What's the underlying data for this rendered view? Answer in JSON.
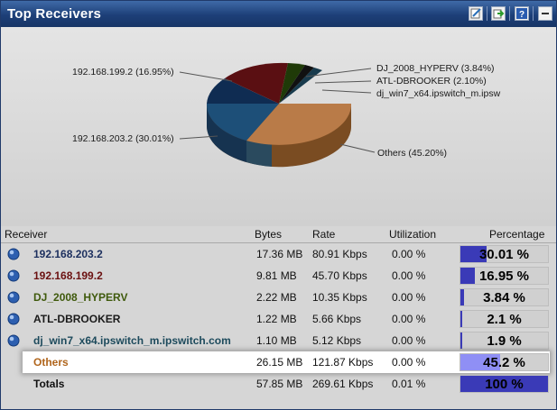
{
  "window": {
    "title": "Top Receivers"
  },
  "titlebar_buttons": [
    {
      "name": "edit-icon"
    },
    {
      "name": "export-icon"
    },
    {
      "name": "help-icon"
    },
    {
      "name": "minimize-icon"
    }
  ],
  "pie": {
    "labels": [
      "192.168.199.2 (16.95%)",
      "DJ_2008_HYPERV (3.84%)",
      "ATL-DBROOKER (2.10%)",
      "dj_win7_x64.ipswitch_m.ipsw",
      "192.168.203.2 (30.01%)",
      "Others (45.20%)"
    ]
  },
  "table": {
    "headers": {
      "receiver": "Receiver",
      "bytes": "Bytes",
      "rate": "Rate",
      "utilization": "Utilization",
      "percentage": "Percentage"
    },
    "rows": [
      {
        "receiver": "192.168.203.2",
        "bytes": "17.36 MB",
        "rate": "80.91 Kbps",
        "utilization": "0.00 %",
        "percentage": "30.01 %",
        "pct_value": 30.01,
        "color": "#1c2f5e"
      },
      {
        "receiver": "192.168.199.2",
        "bytes": "9.81 MB",
        "rate": "45.70 Kbps",
        "utilization": "0.00 %",
        "percentage": "16.95 %",
        "pct_value": 16.95,
        "color": "#6b1111"
      },
      {
        "receiver": "DJ_2008_HYPERV",
        "bytes": "2.22 MB",
        "rate": "10.35 Kbps",
        "utilization": "0.00 %",
        "percentage": "3.84 %",
        "pct_value": 3.84,
        "color": "#3f5a0c"
      },
      {
        "receiver": "ATL-DBROOKER",
        "bytes": "1.22 MB",
        "rate": "5.66 Kbps",
        "utilization": "0.00 %",
        "percentage": "2.1 %",
        "pct_value": 2.1,
        "color": "#1a1a1a"
      },
      {
        "receiver": "dj_win7_x64.ipswitch_m.ipswitch.com",
        "bytes": "1.10 MB",
        "rate": "5.12 Kbps",
        "utilization": "0.00 %",
        "percentage": "1.9 %",
        "pct_value": 1.9,
        "color": "#1d4a5c"
      },
      {
        "receiver": "Others",
        "bytes": "26.15 MB",
        "rate": "121.87 Kbps",
        "utilization": "0.00 %",
        "percentage": "45.2 %",
        "pct_value": 45.2,
        "color": "#b0651c"
      }
    ],
    "totals": {
      "receiver": "Totals",
      "bytes": "57.85 MB",
      "rate": "269.61 Kbps",
      "utilization": "0.01 %",
      "percentage": "100 %",
      "pct_value": 100
    }
  },
  "colors": {
    "titlebar": "#1d3f78",
    "bar_fill": "#3a3ab7",
    "bar_fill_selected": "#8f8ff5"
  }
}
